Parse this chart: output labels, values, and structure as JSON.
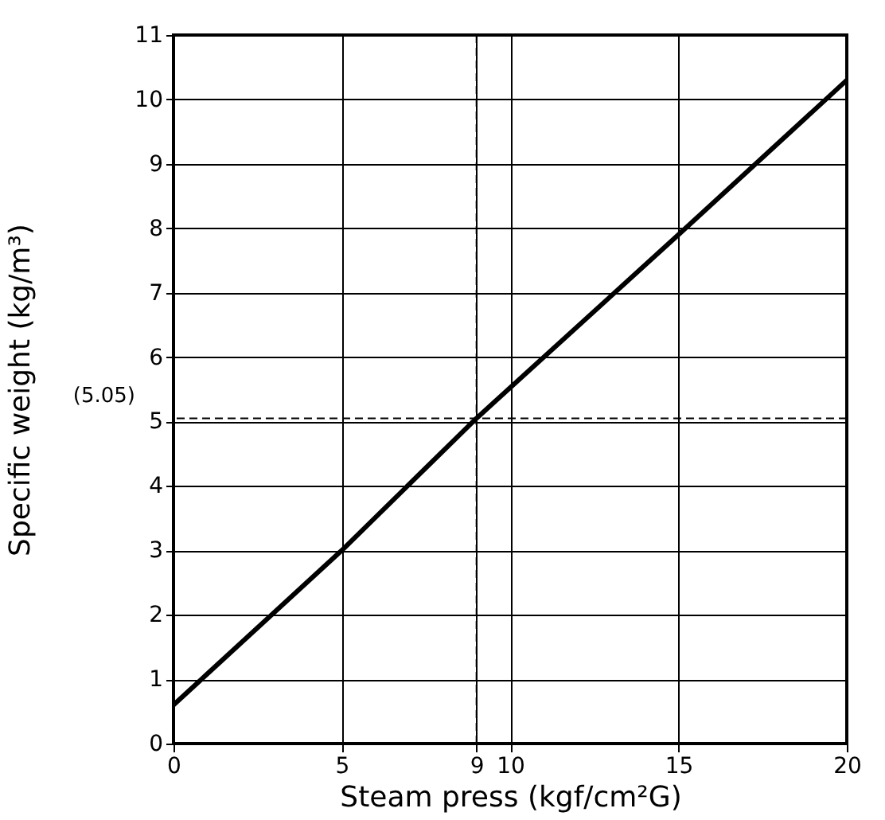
{
  "chart_data": {
    "type": "line",
    "xlabel": "Steam press (kgf/cm²G)",
    "ylabel": "Specific weight (kg/m³)",
    "x": [
      0,
      5,
      9,
      15,
      20
    ],
    "series": [
      {
        "color": "#000000",
        "values": [
          0.6,
          3.0,
          5.05,
          7.9,
          10.3
        ]
      }
    ],
    "xlim": [
      0,
      20
    ],
    "ylim": [
      0,
      11
    ],
    "xticks": [
      0,
      5,
      9,
      10,
      15,
      20
    ],
    "yticks": [
      0,
      1,
      2,
      3,
      4,
      5,
      6,
      7,
      8,
      9,
      10,
      11
    ],
    "ref_lines": [
      {
        "axis": "y",
        "value": 5.05,
        "label": "(5.05)",
        "line_style": "dashed"
      },
      {
        "axis": "x",
        "value": 9,
        "line_style": "dashed"
      }
    ],
    "grid": true,
    "marker": "none",
    "line_style": "solid"
  }
}
